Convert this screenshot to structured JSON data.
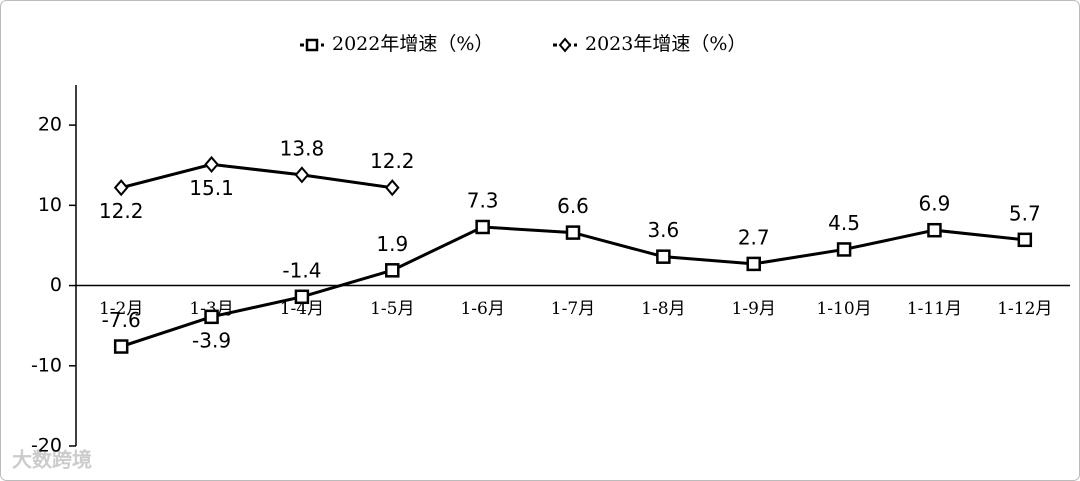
{
  "chart_data": {
    "type": "line",
    "categories": [
      "1-2月",
      "1-3月",
      "1-4月",
      "1-5月",
      "1-6月",
      "1-7月",
      "1-8月",
      "1-9月",
      "1-10月",
      "1-11月",
      "1-12月"
    ],
    "series": [
      {
        "name": "2022年增速（%）",
        "color": "#000000",
        "marker": "square",
        "values": [
          -7.6,
          -3.9,
          -1.4,
          1.9,
          7.3,
          6.6,
          3.6,
          2.7,
          4.5,
          6.9,
          5.7
        ]
      },
      {
        "name": "2023年增速（%）",
        "color": "#000000",
        "marker": "diamond",
        "values": [
          12.2,
          15.1,
          13.8,
          12.2,
          null,
          null,
          null,
          null,
          null,
          null,
          null
        ]
      }
    ],
    "ylim": [
      -20,
      25
    ],
    "yticks": [
      -20,
      -10,
      0,
      10,
      20
    ],
    "legend": "top",
    "watermark": "大数跨境"
  }
}
